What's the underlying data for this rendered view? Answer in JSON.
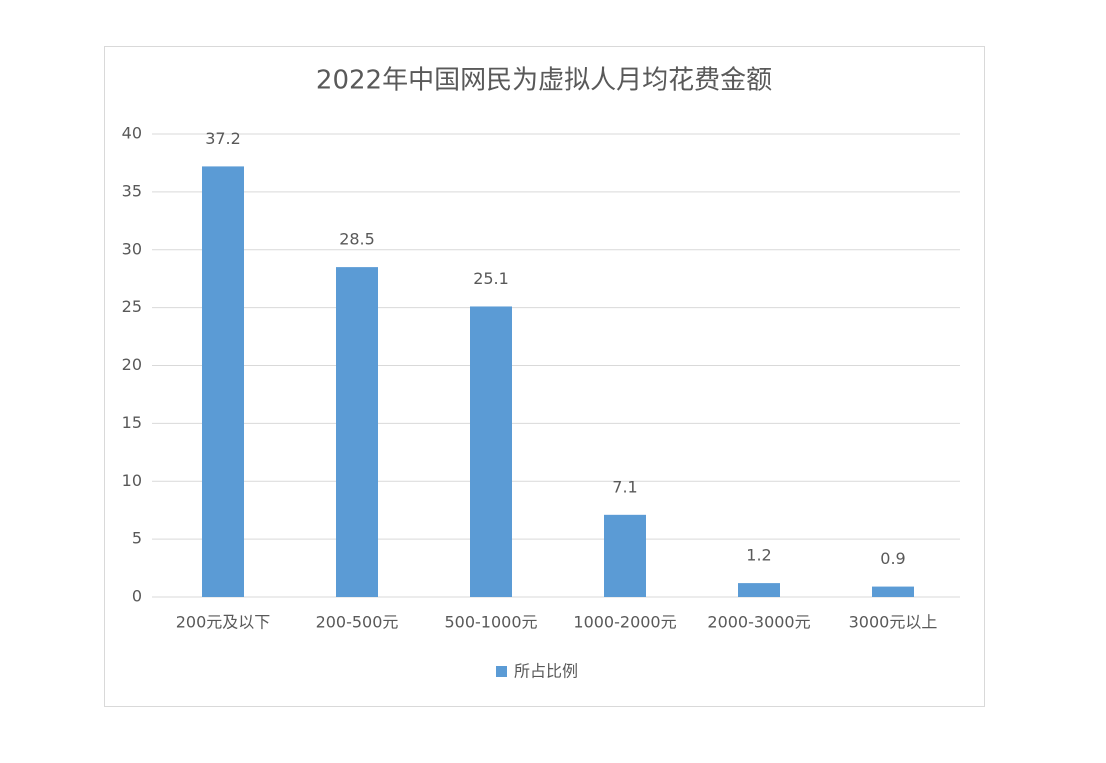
{
  "chart_data": {
    "type": "bar",
    "title": "2022年中国网民为虚拟人月均花费金额",
    "categories": [
      "200元及以下",
      "200-500元",
      "500-1000元",
      "1000-2000元",
      "2000-3000元",
      "3000元以上"
    ],
    "series": [
      {
        "name": "所占比例",
        "color": "#5b9bd5",
        "values": [
          37.2,
          28.5,
          25.1,
          7.1,
          1.2,
          0.9
        ]
      }
    ],
    "ylim": [
      0,
      40
    ],
    "yticks": [
      0,
      5,
      10,
      15,
      20,
      25,
      30,
      35,
      40
    ],
    "grid": true,
    "legend": "bottom"
  }
}
